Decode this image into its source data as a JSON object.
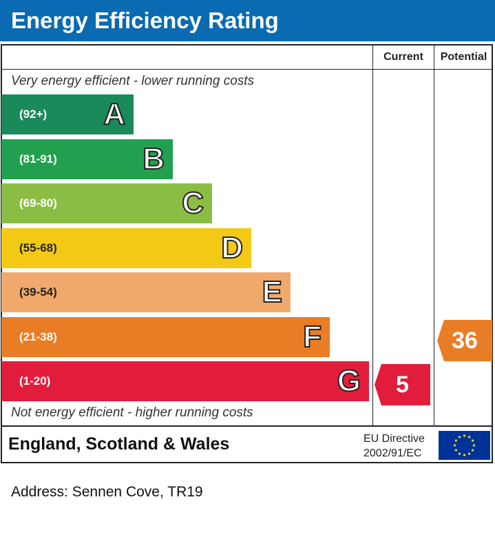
{
  "header": {
    "title": "Energy Efficiency Rating"
  },
  "columns": {
    "current": "Current",
    "potential": "Potential"
  },
  "captions": {
    "top": "Very energy efficient - lower running costs",
    "bottom": "Not energy efficient - higher running costs"
  },
  "chart_data": {
    "type": "bar",
    "title": "Energy Efficiency Rating",
    "categories": [
      "A",
      "B",
      "C",
      "D",
      "E",
      "F",
      "G"
    ],
    "ranges": [
      "(92+)",
      "(81-91)",
      "(69-80)",
      "(55-68)",
      "(39-54)",
      "(21-38)",
      "(1-20)"
    ],
    "colors": [
      "#1a8a5a",
      "#21a14f",
      "#8bbd44",
      "#f4c916",
      "#f0a96a",
      "#e97d25",
      "#e21d3c"
    ],
    "current": {
      "value": 5,
      "band": "G",
      "color": "#e21d3c"
    },
    "potential": {
      "value": 36,
      "band": "F",
      "color": "#e97d25"
    }
  },
  "footer": {
    "region": "England, Scotland & Wales",
    "directive_line1": "EU Directive",
    "directive_line2": "2002/91/EC"
  },
  "address": "Address: Sennen Cove, TR19"
}
